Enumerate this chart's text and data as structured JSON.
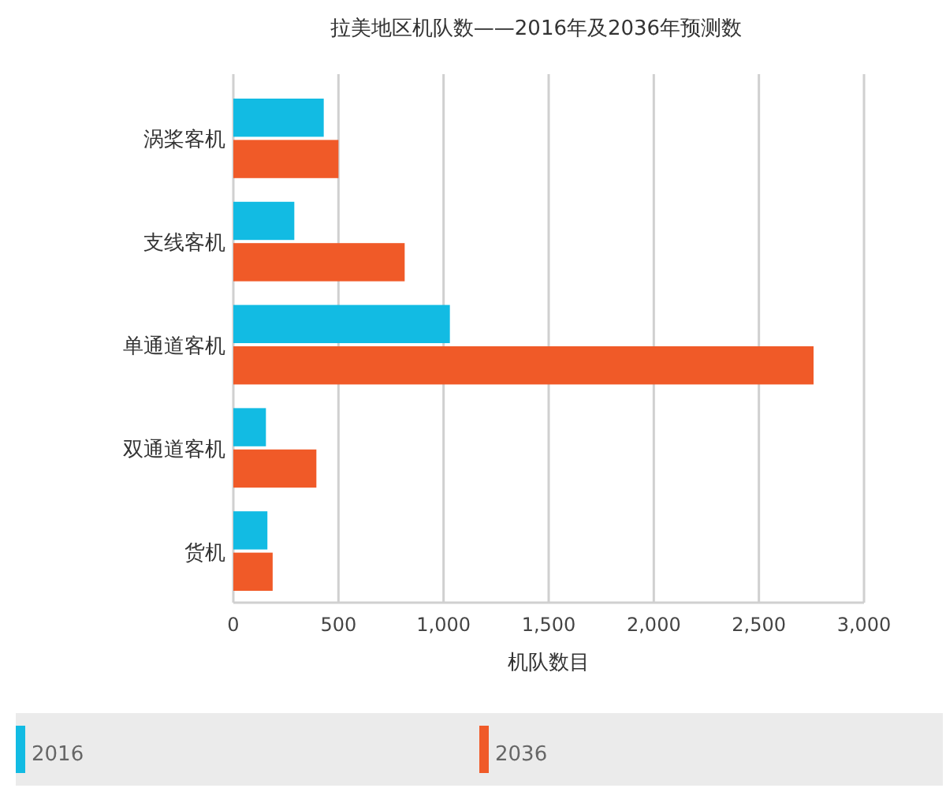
{
  "chart_data": {
    "type": "bar",
    "orientation": "horizontal",
    "title": "拉美地区机队数——2016年及2036年预测数",
    "xlabel": "机队数目",
    "categories": [
      "涡桨客机",
      "支线客机",
      "单通道客机",
      "双通道客机",
      "货机"
    ],
    "series": [
      {
        "name": "2016",
        "color": "#12bbe3",
        "values": [
          430,
          290,
          1030,
          155,
          162
        ]
      },
      {
        "name": "2036",
        "color": "#f05a28",
        "values": [
          500,
          815,
          2760,
          395,
          187
        ]
      }
    ],
    "xlim": [
      0,
      3000
    ],
    "xticks": [
      0,
      {
        "value": 500,
        "label": "500"
      },
      {
        "value": 1000,
        "label": "1,000"
      },
      {
        "value": 1500,
        "label": "1,500"
      },
      {
        "value": 2000,
        "label": "2,000"
      },
      {
        "value": 2500,
        "label": "2,500"
      },
      {
        "value": 3000,
        "label": "3,000"
      }
    ],
    "grid": "x",
    "legend": "bottom"
  }
}
